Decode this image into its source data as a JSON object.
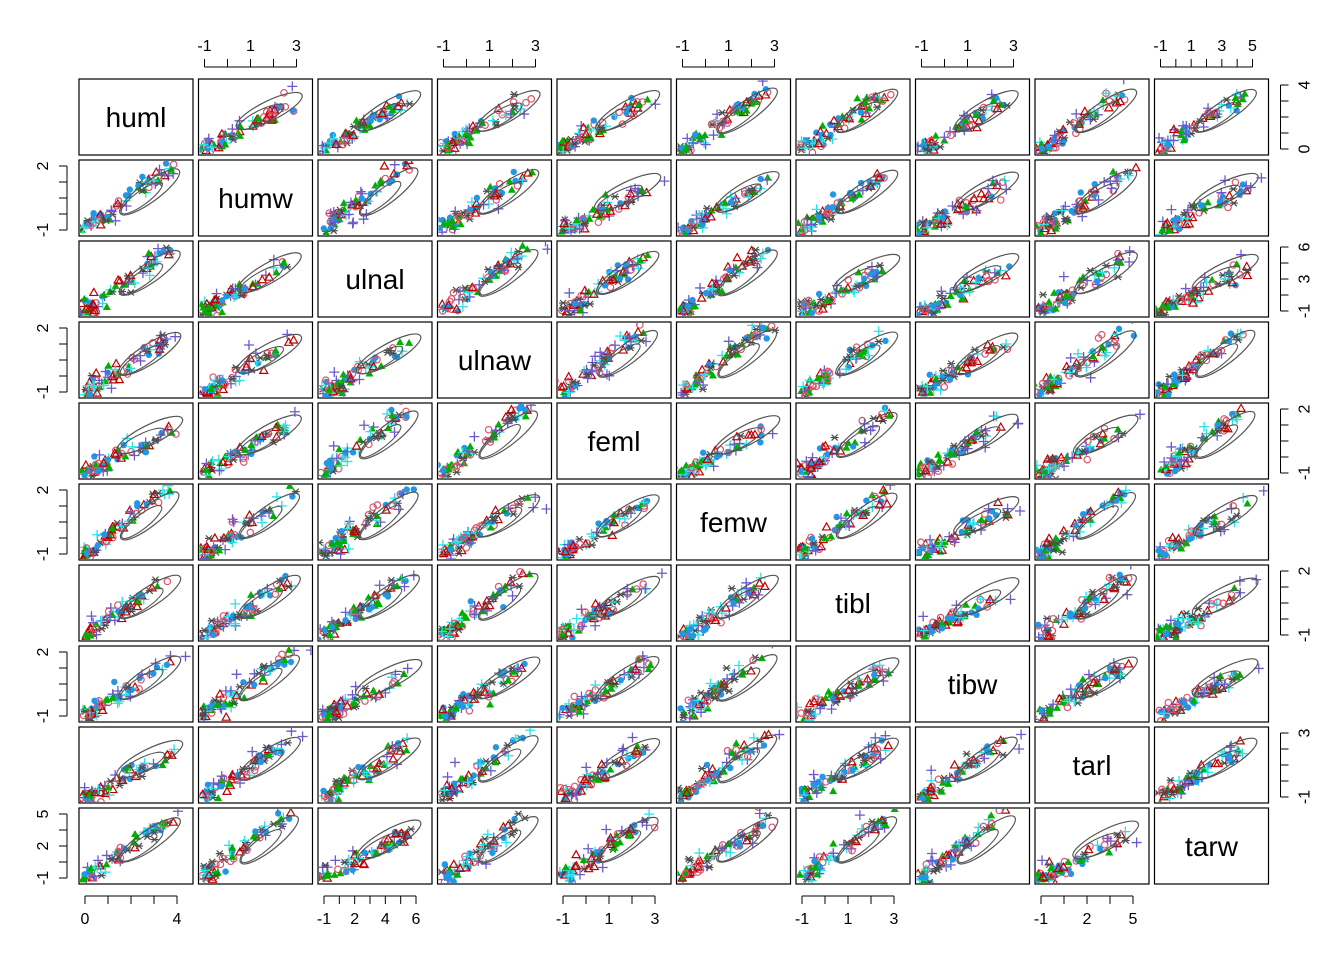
{
  "chart_data": {
    "type": "scatter",
    "variables": [
      "huml",
      "humw",
      "ulnal",
      "ulnaw",
      "feml",
      "femw",
      "tibl",
      "tibw",
      "tarl",
      "tarw"
    ],
    "top_axis_ticks": [
      {
        "column": 1,
        "labels": [
          "-1",
          "1",
          "3"
        ]
      },
      {
        "column": 3,
        "labels": [
          "-1",
          "1",
          "3"
        ]
      },
      {
        "column": 5,
        "labels": [
          "-1",
          "1",
          "3"
        ]
      },
      {
        "column": 7,
        "labels": [
          "-1",
          "1",
          "3"
        ]
      },
      {
        "column": 9,
        "labels": [
          "-1",
          "1",
          "3",
          "5"
        ]
      }
    ],
    "bottom_axis_ticks": [
      {
        "column": 0,
        "labels": [
          "0",
          "4"
        ]
      },
      {
        "column": 2,
        "labels": [
          "-1",
          "2",
          "4",
          "6"
        ]
      },
      {
        "column": 4,
        "labels": [
          "-1",
          "1",
          "3"
        ]
      },
      {
        "column": 6,
        "labels": [
          "-1",
          "1",
          "3"
        ]
      },
      {
        "column": 8,
        "labels": [
          "-1",
          "2",
          "5"
        ]
      }
    ],
    "left_axis_ticks": [
      {
        "row": 1,
        "labels": [
          "-1",
          "2"
        ]
      },
      {
        "row": 3,
        "labels": [
          "-1",
          "2"
        ]
      },
      {
        "row": 5,
        "labels": [
          "-1",
          "2"
        ]
      },
      {
        "row": 7,
        "labels": [
          "-1",
          "2"
        ]
      },
      {
        "row": 9,
        "labels": [
          "-1",
          "2",
          "5"
        ]
      }
    ],
    "right_axis_ticks": [
      {
        "row": 0,
        "labels": [
          "0",
          "4"
        ]
      },
      {
        "row": 2,
        "labels": [
          "-1",
          "3",
          "6"
        ]
      },
      {
        "row": 4,
        "labels": [
          "-1",
          "2"
        ]
      },
      {
        "row": 6,
        "labels": [
          "-1",
          "2"
        ]
      },
      {
        "row": 8,
        "labels": [
          "-1",
          "3"
        ]
      }
    ],
    "groups": [
      {
        "color": "#DF536B",
        "marker": "circle-open",
        "note": "dark red"
      },
      {
        "color": "#C00000",
        "marker": "triangle-open"
      },
      {
        "color": "#28E2E5",
        "marker": "plus"
      },
      {
        "color": "#2297E6",
        "marker": "filled-circle"
      },
      {
        "color": "#00B000",
        "marker": "filled-triangle"
      },
      {
        "color": "#6A5ACD",
        "marker": "plus"
      },
      {
        "color": "#4D4D4D",
        "marker": "asterisk"
      }
    ],
    "axis_range": [
      -1.5,
      5.5
    ],
    "ellipse_color": "#555555",
    "grid": false
  }
}
